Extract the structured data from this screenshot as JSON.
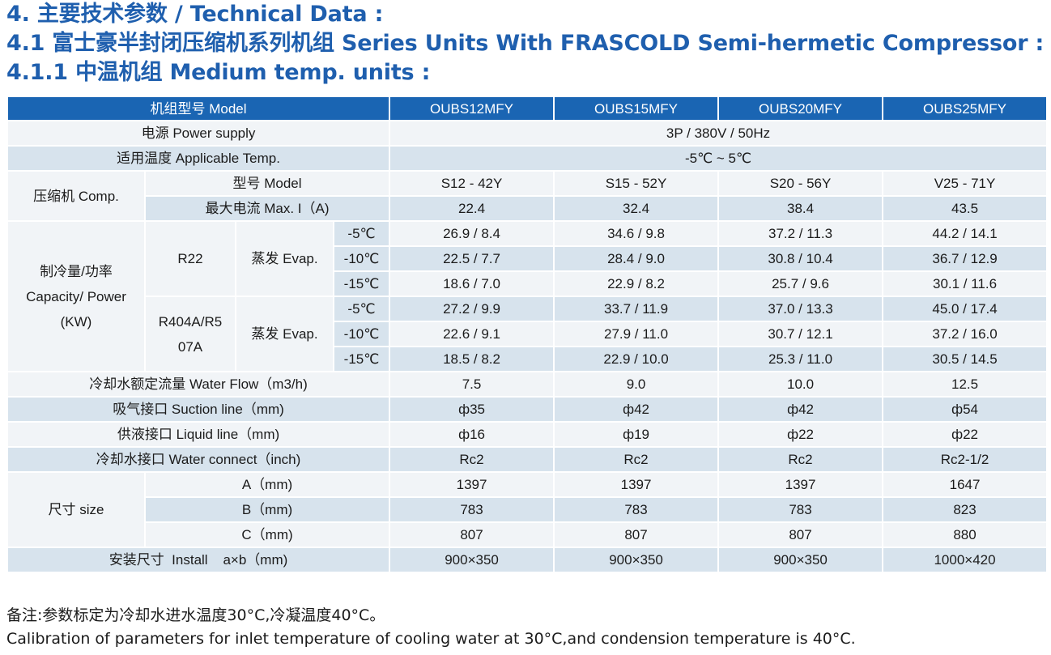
{
  "headings": {
    "h1": "4. 主要技术参数 / Technical Data :",
    "h2": "4.1 富士豪半封闭压缩机系列机组 Series Units With FRASCOLD Semi-hermetic Compressor :",
    "h3": "4.1.1 中温机组 Medium temp. units :"
  },
  "table": {
    "header": {
      "label": "机组型号 Model",
      "models": [
        "OUBS12MFY",
        "OUBS15MFY",
        "OUBS20MFY",
        "OUBS25MFY"
      ]
    },
    "power": {
      "label": "电源 Power supply",
      "value": "3P / 380V / 50Hz"
    },
    "temp": {
      "label": "适用温度 Applicable Temp.",
      "value": "-5℃ ~ 5℃"
    },
    "comp": {
      "group": "压缩机 Comp.",
      "model_label": "型号 Model",
      "models": [
        "S12 - 42Y",
        "S15 - 52Y",
        "S20 - 56Y",
        "V25 - 71Y"
      ],
      "current_label": "最大电流 Max. I（A)",
      "currents": [
        "22.4",
        "32.4",
        "38.4",
        "43.5"
      ]
    },
    "capacity": {
      "group": "制冷量/功率 Capacity/ Power (KW)",
      "r22": {
        "label": "R22",
        "evap": "蒸发 Evap.",
        "rows": [
          {
            "t": "-5℃",
            "v": [
              "26.9 / 8.4",
              "34.6 / 9.8",
              "37.2 / 11.3",
              "44.2 / 14.1"
            ]
          },
          {
            "t": "-10℃",
            "v": [
              "22.5 / 7.7",
              "28.4 / 9.0",
              "30.8 / 10.4",
              "36.7 / 12.9"
            ]
          },
          {
            "t": "-15℃",
            "v": [
              "18.6 / 7.0",
              "22.9 / 8.2",
              "25.7 / 9.6",
              "30.1 / 11.6"
            ]
          }
        ]
      },
      "r404": {
        "label": "R404A/R5 07A",
        "evap": "蒸发 Evap.",
        "rows": [
          {
            "t": "-5℃",
            "v": [
              "27.2 / 9.9",
              "33.7 / 11.9",
              "37.0 / 13.3",
              "45.0 / 17.4"
            ]
          },
          {
            "t": "-10℃",
            "v": [
              "22.6 / 9.1",
              "27.9 / 11.0",
              "30.7 / 12.1",
              "37.2 / 16.0"
            ]
          },
          {
            "t": "-15℃",
            "v": [
              "18.5 / 8.2",
              "22.9 / 10.0",
              "25.3 / 11.0",
              "30.5 / 14.5"
            ]
          }
        ]
      }
    },
    "water_flow": {
      "label": "冷却水额定流量 Water Flow（m3/h)",
      "v": [
        "7.5",
        "9.0",
        "10.0",
        "12.5"
      ]
    },
    "suction": {
      "label": "吸气接口 Suction line（mm)",
      "v": [
        "ф35",
        "ф42",
        "ф42",
        "ф54"
      ]
    },
    "liquid": {
      "label": "供液接口 Liquid line（mm)",
      "v": [
        "ф16",
        "ф19",
        "ф22",
        "ф22"
      ]
    },
    "water_connect": {
      "label": "冷却水接口 Water connect（inch)",
      "v": [
        "Rc2",
        "Rc2",
        "Rc2",
        "Rc2-1/2"
      ]
    },
    "size": {
      "group": "尺寸 size",
      "rows": [
        {
          "label": "A（mm)",
          "v": [
            "1397",
            "1397",
            "1397",
            "1647"
          ]
        },
        {
          "label": "B（mm)",
          "v": [
            "783",
            "783",
            "783",
            "823"
          ]
        },
        {
          "label": "C（mm)",
          "v": [
            "807",
            "807",
            "807",
            "880"
          ]
        }
      ]
    },
    "install": {
      "label": "安装尺寸  Install    a×b（mm)",
      "v": [
        "900×350",
        "900×350",
        "900×350",
        "1000×420"
      ]
    }
  },
  "notes": {
    "cn": "备注:参数标定为冷却水进水温度30°C,冷凝温度40°C。",
    "en": "Calibration of parameters for inlet temperature of cooling water at 30°C,and condension temperature is 40°C."
  },
  "colors": {
    "heading": "#1f5fae",
    "header_bg": "#1a65b3",
    "row_dark": "#d7e3ed",
    "row_light": "#f1f4f7"
  }
}
